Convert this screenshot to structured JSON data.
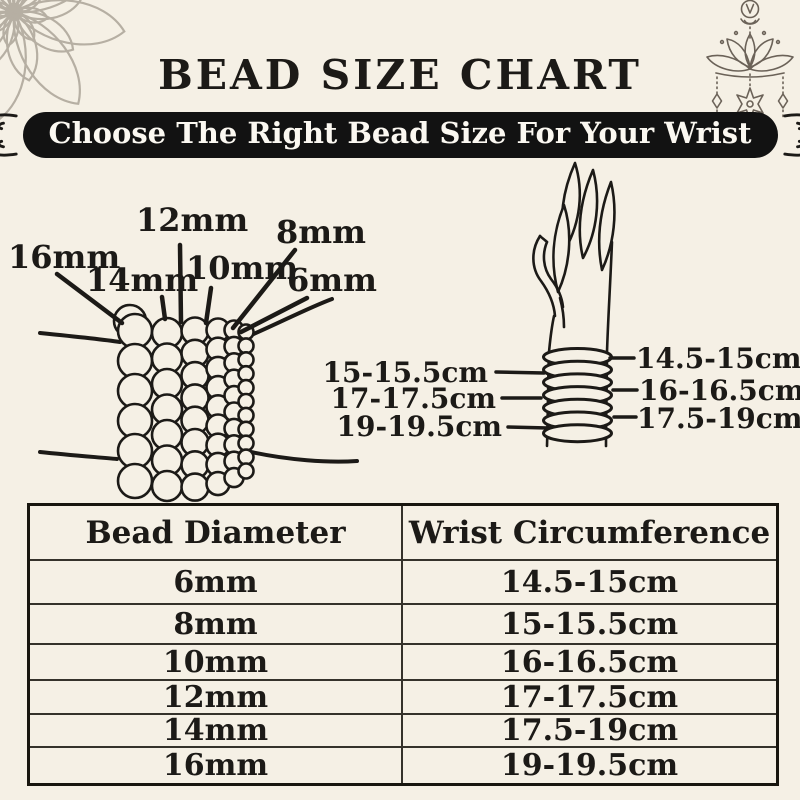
{
  "title": "BEAD SIZE CHART",
  "banner": "Choose The Right Bead Size For Your Wrist",
  "bead_size_labels": [
    "16mm",
    "14mm",
    "12mm",
    "10mm",
    "8mm",
    "6mm"
  ],
  "hand_wrist_labels_left": [
    "15-15.5cm",
    "17-17.5cm",
    "19-19.5cm"
  ],
  "hand_wrist_labels_right": [
    "14.5-15cm",
    "16-16.5cm",
    "17.5-19cm"
  ],
  "size_table": {
    "headers": [
      "Bead Diameter",
      "Wrist Circumference"
    ],
    "rows": [
      {
        "bead_diameter": "6mm",
        "wrist_circumference": "14.5-15cm"
      },
      {
        "bead_diameter": "8mm",
        "wrist_circumference": "15-15.5cm"
      },
      {
        "bead_diameter": "10mm",
        "wrist_circumference": "16-16.5cm"
      },
      {
        "bead_diameter": "12mm",
        "wrist_circumference": "17-17.5cm"
      },
      {
        "bead_diameter": "14mm",
        "wrist_circumference": "17.5-19cm"
      },
      {
        "bead_diameter": "16mm",
        "wrist_circumference": "19-19.5cm"
      }
    ]
  },
  "colors": {
    "background": "#f5f0e5",
    "ink": "#1c1a17",
    "banner_background": "#121212",
    "banner_text": "#fbf8f1",
    "mandala_gray": "#b6afa3",
    "lotus_gray": "#6b6258"
  }
}
